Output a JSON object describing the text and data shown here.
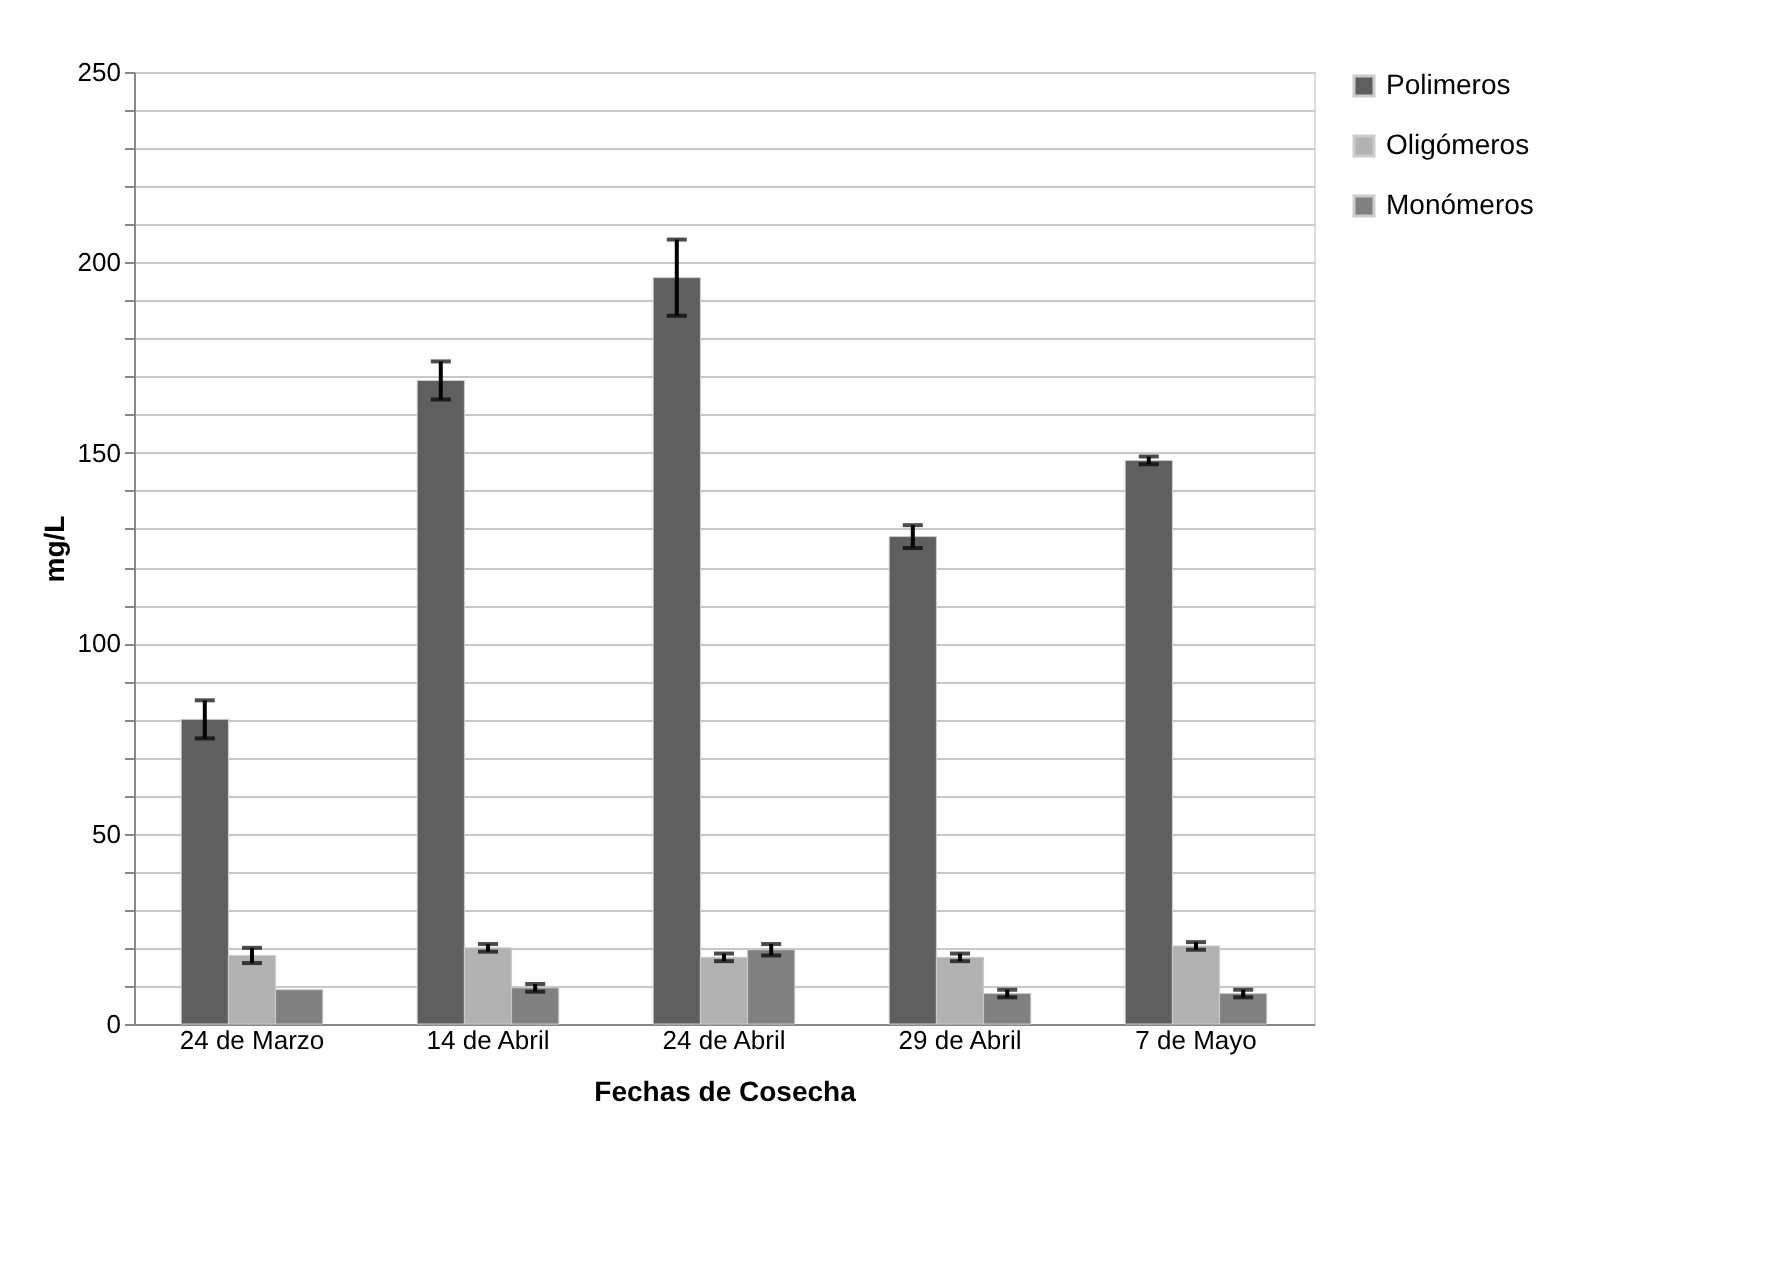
{
  "chart_data": {
    "type": "bar",
    "categories": [
      "24 de Marzo",
      "14 de Abril",
      "24 de Abril",
      "29 de Abril",
      "7 de Mayo"
    ],
    "xlabel": "Fechas de Cosecha",
    "ylabel": "mg/L",
    "series": [
      {
        "name": "Polimeros",
        "color": "#5f5f5f",
        "values": [
          80,
          169,
          196,
          128,
          148
        ],
        "errors": [
          5,
          5,
          10,
          3,
          1
        ]
      },
      {
        "name": "Oligómeros",
        "color": "#b2b2b2",
        "values": [
          18,
          20,
          17.5,
          17.5,
          20.5
        ],
        "errors": [
          2,
          1,
          1,
          1,
          1
        ]
      },
      {
        "name": "Monómeros",
        "color": "#808080",
        "values": [
          9,
          9.5,
          19.5,
          8,
          8
        ],
        "errors": [
          null,
          1,
          1.5,
          1,
          1
        ]
      }
    ],
    "ylim": [
      0,
      250
    ],
    "yticks": [
      0,
      {
        "value": 10,
        "label": null
      },
      {
        "value": 20,
        "label": null
      },
      {
        "value": 30,
        "label": null
      },
      {
        "value": 40,
        "label": null
      },
      50,
      {
        "value": 60,
        "label": null
      },
      {
        "value": 70,
        "label": null
      },
      {
        "value": 80,
        "label": null
      },
      {
        "value": 90,
        "label": null
      },
      100,
      {
        "value": 110,
        "label": null
      },
      {
        "value": 120,
        "label": null
      },
      {
        "value": 130,
        "label": null
      },
      {
        "value": 140,
        "label": null
      },
      150,
      {
        "value": 160,
        "label": null
      },
      {
        "value": 170,
        "label": null
      },
      {
        "value": 180,
        "label": null
      },
      {
        "value": 190,
        "label": null
      },
      200,
      {
        "value": 210,
        "label": null
      },
      {
        "value": 220,
        "label": null
      },
      {
        "value": 230,
        "label": null
      },
      {
        "value": 240,
        "label": null
      },
      250
    ],
    "grid": "y",
    "legend": "right"
  }
}
